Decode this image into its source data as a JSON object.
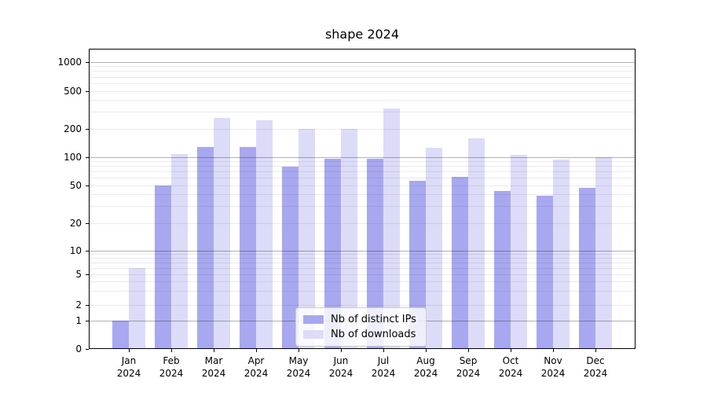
{
  "chart_data": {
    "type": "bar",
    "title": "shape 2024",
    "categories": [
      "Jan",
      "Feb",
      "Mar",
      "Apr",
      "May",
      "Jun",
      "Jul",
      "Aug",
      "Sep",
      "Oct",
      "Nov",
      "Dec"
    ],
    "category_year": "2024",
    "series": [
      {
        "name": "Nb of distinct IPs",
        "color": "#a8a8f0",
        "values": [
          1,
          50,
          129,
          129,
          80,
          97,
          97,
          56,
          62,
          44,
          39,
          47
        ]
      },
      {
        "name": "Nb of downloads",
        "color": "#dcdcf8",
        "values": [
          6,
          107,
          263,
          245,
          199,
          199,
          331,
          126,
          159,
          106,
          95,
          100
        ]
      }
    ],
    "yscale": "symlog",
    "yticks": [
      0,
      1,
      2,
      5,
      10,
      20,
      50,
      100,
      200,
      500,
      1000
    ],
    "ylim": [
      0,
      1400
    ],
    "grid": true,
    "legend_position": "lower center",
    "xlabel": "",
    "ylabel": ""
  }
}
